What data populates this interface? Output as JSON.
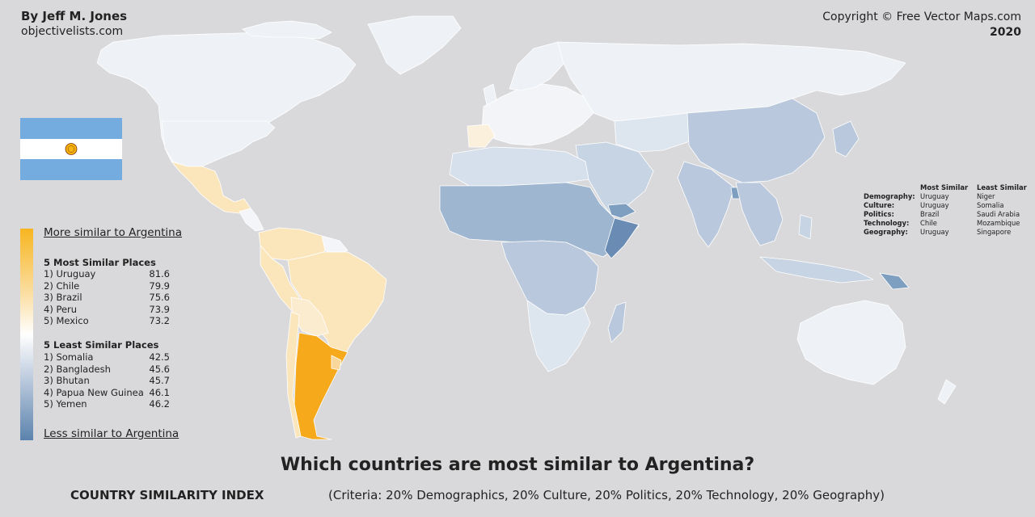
{
  "header": {
    "author": "By Jeff M. Jones",
    "site": "objectivelists.com",
    "copyright": "Copyright © Free Vector Maps.com",
    "year": "2020"
  },
  "colors": {
    "ocean": "#d9d9db",
    "most_similar": "#f7b520",
    "similar": "#fbe6bc",
    "neutral": "#f2f4f7",
    "less_similar": "#b9c8dc",
    "least_similar": "#5b83ad",
    "target_country": "#f6a91b"
  },
  "legend": {
    "more_label": "More similar to Argentina",
    "less_label": "Less similar to Argentina",
    "most_title": "5 Most Similar Places",
    "most": [
      {
        "name": "1) Uruguay",
        "score": "81.6"
      },
      {
        "name": "2) Chile",
        "score": "79.9"
      },
      {
        "name": "3) Brazil",
        "score": "75.6"
      },
      {
        "name": "4) Peru",
        "score": "73.9"
      },
      {
        "name": "5) Mexico",
        "score": "73.2"
      }
    ],
    "least_title": "5 Least Similar Places",
    "least": [
      {
        "name": "1) Somalia",
        "score": "42.5"
      },
      {
        "name": "2) Bangladesh",
        "score": "45.6"
      },
      {
        "name": "3) Bhutan",
        "score": "45.7"
      },
      {
        "name": "4) Papua New Guinea",
        "score": "46.1"
      },
      {
        "name": "5) Yemen",
        "score": "46.2"
      }
    ]
  },
  "criteria_table": {
    "headers": [
      "",
      "Most Similar",
      "Least Similar"
    ],
    "rows": [
      [
        "Demography:",
        "Uruguay",
        "Niger"
      ],
      [
        "Culture:",
        "Uruguay",
        "Somalia"
      ],
      [
        "Politics:",
        "Brazil",
        "Saudi Arabia"
      ],
      [
        "Technology:",
        "Chile",
        "Mozambique"
      ],
      [
        "Geography:",
        "Uruguay",
        "Singapore"
      ]
    ]
  },
  "footer": {
    "headline": "Which countries are most similar to Argentina?",
    "subtitle": "COUNTRY SIMILARITY INDEX",
    "criteria": "(Criteria: 20% Demographics, 20% Culture, 20% Politics, 20% Technology, 20% Geography)"
  }
}
